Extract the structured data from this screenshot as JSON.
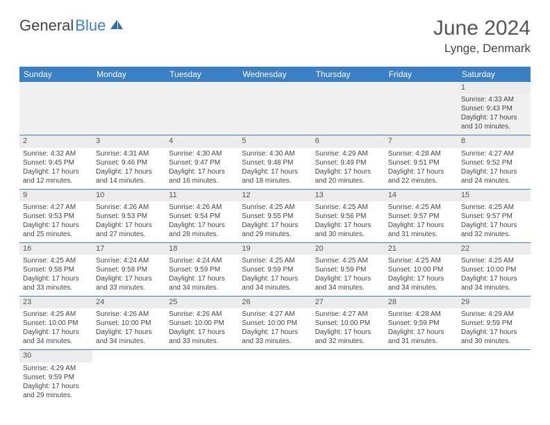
{
  "logo": {
    "text_a": "General",
    "text_b": "Blue"
  },
  "title": {
    "month_year": "June 2024",
    "location": "Lynge, Denmark"
  },
  "colors": {
    "header_bg": "#3b7fc4",
    "header_fg": "#ffffff",
    "band_bg": "#ececec",
    "border": "#3b7fc4"
  },
  "day_names": [
    "Sunday",
    "Monday",
    "Tuesday",
    "Wednesday",
    "Thursday",
    "Friday",
    "Saturday"
  ],
  "weeks": [
    [
      null,
      null,
      null,
      null,
      null,
      null,
      {
        "n": "1",
        "sunrise": "Sunrise: 4:33 AM",
        "sunset": "Sunset: 9:43 PM",
        "daylight": "Daylight: 17 hours and 10 minutes."
      }
    ],
    [
      {
        "n": "2",
        "sunrise": "Sunrise: 4:32 AM",
        "sunset": "Sunset: 9:45 PM",
        "daylight": "Daylight: 17 hours and 12 minutes."
      },
      {
        "n": "3",
        "sunrise": "Sunrise: 4:31 AM",
        "sunset": "Sunset: 9:46 PM",
        "daylight": "Daylight: 17 hours and 14 minutes."
      },
      {
        "n": "4",
        "sunrise": "Sunrise: 4:30 AM",
        "sunset": "Sunset: 9:47 PM",
        "daylight": "Daylight: 17 hours and 16 minutes."
      },
      {
        "n": "5",
        "sunrise": "Sunrise: 4:30 AM",
        "sunset": "Sunset: 9:48 PM",
        "daylight": "Daylight: 17 hours and 18 minutes."
      },
      {
        "n": "6",
        "sunrise": "Sunrise: 4:29 AM",
        "sunset": "Sunset: 9:49 PM",
        "daylight": "Daylight: 17 hours and 20 minutes."
      },
      {
        "n": "7",
        "sunrise": "Sunrise: 4:28 AM",
        "sunset": "Sunset: 9:51 PM",
        "daylight": "Daylight: 17 hours and 22 minutes."
      },
      {
        "n": "8",
        "sunrise": "Sunrise: 4:27 AM",
        "sunset": "Sunset: 9:52 PM",
        "daylight": "Daylight: 17 hours and 24 minutes."
      }
    ],
    [
      {
        "n": "9",
        "sunrise": "Sunrise: 4:27 AM",
        "sunset": "Sunset: 9:53 PM",
        "daylight": "Daylight: 17 hours and 25 minutes."
      },
      {
        "n": "10",
        "sunrise": "Sunrise: 4:26 AM",
        "sunset": "Sunset: 9:53 PM",
        "daylight": "Daylight: 17 hours and 27 minutes."
      },
      {
        "n": "11",
        "sunrise": "Sunrise: 4:26 AM",
        "sunset": "Sunset: 9:54 PM",
        "daylight": "Daylight: 17 hours and 28 minutes."
      },
      {
        "n": "12",
        "sunrise": "Sunrise: 4:25 AM",
        "sunset": "Sunset: 9:55 PM",
        "daylight": "Daylight: 17 hours and 29 minutes."
      },
      {
        "n": "13",
        "sunrise": "Sunrise: 4:25 AM",
        "sunset": "Sunset: 9:56 PM",
        "daylight": "Daylight: 17 hours and 30 minutes."
      },
      {
        "n": "14",
        "sunrise": "Sunrise: 4:25 AM",
        "sunset": "Sunset: 9:57 PM",
        "daylight": "Daylight: 17 hours and 31 minutes."
      },
      {
        "n": "15",
        "sunrise": "Sunrise: 4:25 AM",
        "sunset": "Sunset: 9:57 PM",
        "daylight": "Daylight: 17 hours and 32 minutes."
      }
    ],
    [
      {
        "n": "16",
        "sunrise": "Sunrise: 4:25 AM",
        "sunset": "Sunset: 9:58 PM",
        "daylight": "Daylight: 17 hours and 33 minutes."
      },
      {
        "n": "17",
        "sunrise": "Sunrise: 4:24 AM",
        "sunset": "Sunset: 9:58 PM",
        "daylight": "Daylight: 17 hours and 33 minutes."
      },
      {
        "n": "18",
        "sunrise": "Sunrise: 4:24 AM",
        "sunset": "Sunset: 9:59 PM",
        "daylight": "Daylight: 17 hours and 34 minutes."
      },
      {
        "n": "19",
        "sunrise": "Sunrise: 4:25 AM",
        "sunset": "Sunset: 9:59 PM",
        "daylight": "Daylight: 17 hours and 34 minutes."
      },
      {
        "n": "20",
        "sunrise": "Sunrise: 4:25 AM",
        "sunset": "Sunset: 9:59 PM",
        "daylight": "Daylight: 17 hours and 34 minutes."
      },
      {
        "n": "21",
        "sunrise": "Sunrise: 4:25 AM",
        "sunset": "Sunset: 10:00 PM",
        "daylight": "Daylight: 17 hours and 34 minutes."
      },
      {
        "n": "22",
        "sunrise": "Sunrise: 4:25 AM",
        "sunset": "Sunset: 10:00 PM",
        "daylight": "Daylight: 17 hours and 34 minutes."
      }
    ],
    [
      {
        "n": "23",
        "sunrise": "Sunrise: 4:25 AM",
        "sunset": "Sunset: 10:00 PM",
        "daylight": "Daylight: 17 hours and 34 minutes."
      },
      {
        "n": "24",
        "sunrise": "Sunrise: 4:26 AM",
        "sunset": "Sunset: 10:00 PM",
        "daylight": "Daylight: 17 hours and 34 minutes."
      },
      {
        "n": "25",
        "sunrise": "Sunrise: 4:26 AM",
        "sunset": "Sunset: 10:00 PM",
        "daylight": "Daylight: 17 hours and 33 minutes."
      },
      {
        "n": "26",
        "sunrise": "Sunrise: 4:27 AM",
        "sunset": "Sunset: 10:00 PM",
        "daylight": "Daylight: 17 hours and 33 minutes."
      },
      {
        "n": "27",
        "sunrise": "Sunrise: 4:27 AM",
        "sunset": "Sunset: 10:00 PM",
        "daylight": "Daylight: 17 hours and 32 minutes."
      },
      {
        "n": "28",
        "sunrise": "Sunrise: 4:28 AM",
        "sunset": "Sunset: 9:59 PM",
        "daylight": "Daylight: 17 hours and 31 minutes."
      },
      {
        "n": "29",
        "sunrise": "Sunrise: 4:29 AM",
        "sunset": "Sunset: 9:59 PM",
        "daylight": "Daylight: 17 hours and 30 minutes."
      }
    ],
    [
      {
        "n": "30",
        "sunrise": "Sunrise: 4:29 AM",
        "sunset": "Sunset: 9:59 PM",
        "daylight": "Daylight: 17 hours and 29 minutes."
      },
      null,
      null,
      null,
      null,
      null,
      null
    ]
  ]
}
